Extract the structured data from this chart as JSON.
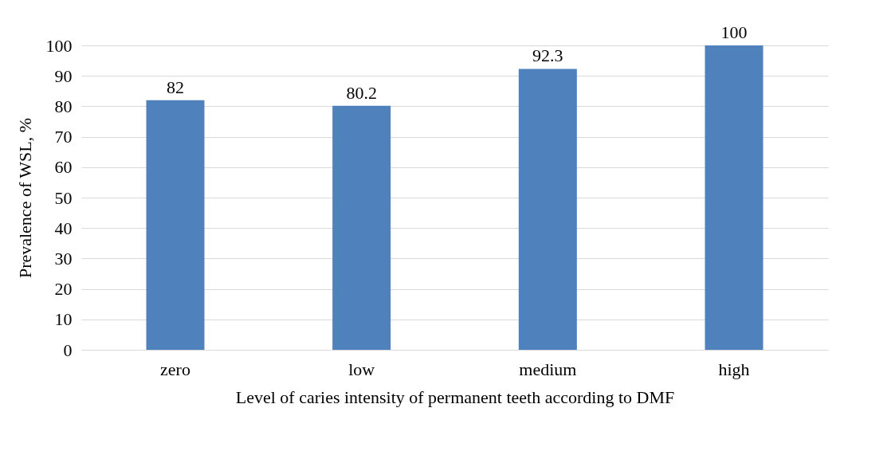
{
  "chart_data": {
    "type": "bar",
    "categories": [
      "zero",
      "low",
      "medium",
      "high"
    ],
    "values": [
      82,
      80.2,
      92.3,
      100
    ],
    "color": "#4f81bd",
    "xlabel": "Level of caries intensity of permanent teeth according to DMF",
    "ylabel": "Prevalence of WSL, %",
    "ylim": [
      0,
      100
    ],
    "yticks": [
      0,
      10,
      20,
      30,
      40,
      50,
      60,
      70,
      80,
      90,
      100
    ],
    "grid": "y",
    "data_labels": true
  }
}
